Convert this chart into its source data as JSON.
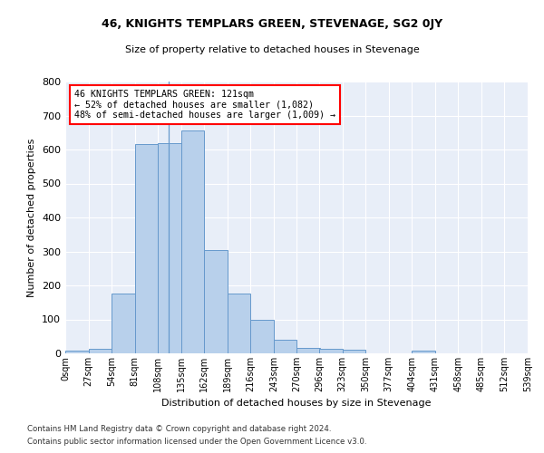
{
  "title": "46, KNIGHTS TEMPLARS GREEN, STEVENAGE, SG2 0JY",
  "subtitle": "Size of property relative to detached houses in Stevenage",
  "xlabel": "Distribution of detached houses by size in Stevenage",
  "ylabel": "Number of detached properties",
  "bar_color": "#b8d0eb",
  "bar_edge_color": "#6699cc",
  "background_color": "#e8eef8",
  "bins": [
    0,
    27,
    54,
    81,
    108,
    135,
    162,
    189,
    216,
    243,
    270,
    296,
    323,
    350,
    377,
    404,
    431,
    458,
    485,
    512,
    539
  ],
  "values": [
    8,
    13,
    175,
    615,
    620,
    655,
    305,
    175,
    98,
    40,
    15,
    13,
    10,
    0,
    0,
    8,
    0,
    0,
    0,
    0
  ],
  "tick_labels": [
    "0sqm",
    "27sqm",
    "54sqm",
    "81sqm",
    "108sqm",
    "135sqm",
    "162sqm",
    "189sqm",
    "216sqm",
    "243sqm",
    "270sqm",
    "296sqm",
    "323sqm",
    "350sqm",
    "377sqm",
    "404sqm",
    "431sqm",
    "458sqm",
    "485sqm",
    "512sqm",
    "539sqm"
  ],
  "ylim": [
    0,
    800
  ],
  "yticks": [
    0,
    100,
    200,
    300,
    400,
    500,
    600,
    700,
    800
  ],
  "annotation_text": "46 KNIGHTS TEMPLARS GREEN: 121sqm\n← 52% of detached houses are smaller (1,082)\n48% of semi-detached houses are larger (1,009) →",
  "vline_x": 121,
  "footnote1": "Contains HM Land Registry data © Crown copyright and database right 2024.",
  "footnote2": "Contains public sector information licensed under the Open Government Licence v3.0."
}
